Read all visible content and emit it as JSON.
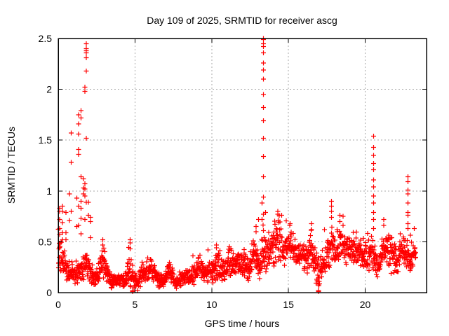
{
  "figure": {
    "title": "Day 109 of 2025, SRMTID for receiver ascg",
    "xlabel": "GPS time / hours",
    "ylabel": "SRMTID / TECUs"
  },
  "chart_data": {
    "type": "scatter",
    "title": "Day 109 of 2025, SRMTID for receiver ascg",
    "xlabel": "GPS time / hours",
    "ylabel": "SRMTID / TECUs",
    "series_name": "SRMTID",
    "xlim": [
      0,
      24
    ],
    "ylim": [
      0,
      2.5
    ],
    "xticks": [
      0,
      5,
      10,
      15,
      20
    ],
    "yticks": [
      0,
      0.5,
      1,
      1.5,
      2,
      2.5
    ],
    "grid": true,
    "legend_position": "none",
    "marker": "plus",
    "marker_color": "#ff0000",
    "grid_color": "#a8a8a8",
    "border_color": "#000000",
    "x_start": 0.0,
    "x_end": 23.3,
    "sample_step_hours": 0.013,
    "seed": 109,
    "band_keypoints": [
      [
        0.0,
        0.4,
        0.22
      ],
      [
        0.15,
        0.33,
        0.14
      ],
      [
        0.35,
        0.28,
        0.11
      ],
      [
        0.6,
        0.23,
        0.09
      ],
      [
        0.9,
        0.19,
        0.08
      ],
      [
        1.2,
        0.17,
        0.08
      ],
      [
        1.5,
        0.23,
        0.11
      ],
      [
        1.8,
        0.27,
        0.13
      ],
      [
        2.0,
        0.21,
        0.11
      ],
      [
        2.3,
        0.13,
        0.06
      ],
      [
        2.6,
        0.18,
        0.08
      ],
      [
        2.85,
        0.3,
        0.14
      ],
      [
        3.05,
        0.28,
        0.13
      ],
      [
        3.25,
        0.17,
        0.08
      ],
      [
        3.5,
        0.12,
        0.06
      ],
      [
        3.8,
        0.1,
        0.05
      ],
      [
        4.1,
        0.13,
        0.06
      ],
      [
        4.4,
        0.11,
        0.06
      ],
      [
        4.65,
        0.22,
        0.14
      ],
      [
        4.9,
        0.15,
        0.08
      ],
      [
        5.15,
        0.08,
        0.05
      ],
      [
        5.45,
        0.2,
        0.09
      ],
      [
        5.75,
        0.2,
        0.08
      ],
      [
        6.05,
        0.22,
        0.09
      ],
      [
        6.35,
        0.17,
        0.08
      ],
      [
        6.65,
        0.11,
        0.06
      ],
      [
        6.9,
        0.1,
        0.05
      ],
      [
        7.15,
        0.2,
        0.08
      ],
      [
        7.4,
        0.18,
        0.08
      ],
      [
        7.7,
        0.08,
        0.05
      ],
      [
        8.0,
        0.14,
        0.07
      ],
      [
        8.3,
        0.16,
        0.07
      ],
      [
        8.6,
        0.14,
        0.07
      ],
      [
        8.9,
        0.2,
        0.09
      ],
      [
        9.15,
        0.25,
        0.1
      ],
      [
        9.45,
        0.2,
        0.09
      ],
      [
        9.75,
        0.22,
        0.1
      ],
      [
        10.05,
        0.22,
        0.1
      ],
      [
        10.3,
        0.3,
        0.13
      ],
      [
        10.6,
        0.24,
        0.11
      ],
      [
        10.9,
        0.2,
        0.09
      ],
      [
        11.15,
        0.3,
        0.12
      ],
      [
        11.4,
        0.27,
        0.1
      ],
      [
        11.7,
        0.28,
        0.1
      ],
      [
        12.1,
        0.27,
        0.1
      ],
      [
        12.45,
        0.2,
        0.1
      ],
      [
        12.7,
        0.42,
        0.16
      ],
      [
        12.95,
        0.35,
        0.14
      ],
      [
        13.15,
        0.22,
        0.13
      ],
      [
        13.36,
        0.45,
        0.18
      ],
      [
        13.6,
        0.38,
        0.14
      ],
      [
        13.85,
        0.4,
        0.15
      ],
      [
        14.15,
        0.5,
        0.2
      ],
      [
        14.4,
        0.55,
        0.2
      ],
      [
        14.65,
        0.4,
        0.13
      ],
      [
        14.9,
        0.45,
        0.15
      ],
      [
        15.1,
        0.5,
        0.15
      ],
      [
        15.35,
        0.42,
        0.13
      ],
      [
        15.6,
        0.36,
        0.12
      ],
      [
        15.9,
        0.38,
        0.12
      ],
      [
        16.2,
        0.33,
        0.12
      ],
      [
        16.5,
        0.45,
        0.15
      ],
      [
        16.75,
        0.28,
        0.14
      ],
      [
        17.0,
        0.18,
        0.11
      ],
      [
        17.25,
        0.26,
        0.11
      ],
      [
        17.5,
        0.38,
        0.14
      ],
      [
        17.8,
        0.48,
        0.18
      ],
      [
        18.1,
        0.35,
        0.13
      ],
      [
        18.35,
        0.5,
        0.16
      ],
      [
        18.6,
        0.46,
        0.15
      ],
      [
        18.85,
        0.44,
        0.13
      ],
      [
        19.1,
        0.42,
        0.12
      ],
      [
        19.35,
        0.45,
        0.13
      ],
      [
        19.6,
        0.4,
        0.12
      ],
      [
        19.9,
        0.34,
        0.12
      ],
      [
        20.15,
        0.35,
        0.12
      ],
      [
        20.45,
        0.4,
        0.15
      ],
      [
        20.7,
        0.29,
        0.12
      ],
      [
        20.95,
        0.28,
        0.13
      ],
      [
        21.2,
        0.46,
        0.17
      ],
      [
        21.45,
        0.42,
        0.15
      ],
      [
        21.7,
        0.37,
        0.14
      ],
      [
        21.95,
        0.31,
        0.12
      ],
      [
        22.2,
        0.34,
        0.11
      ],
      [
        22.45,
        0.42,
        0.12
      ],
      [
        22.7,
        0.4,
        0.14
      ],
      [
        22.95,
        0.32,
        0.13
      ],
      [
        23.15,
        0.38,
        0.1
      ],
      [
        23.3,
        0.4,
        0.08
      ]
    ],
    "spike_columns": [
      {
        "x": 0.1,
        "ys": [
          0.83,
          0.8,
          0.72,
          0.63,
          0.57
        ]
      },
      {
        "x": 0.27,
        "ys": [
          0.85,
          0.8,
          0.69,
          0.59,
          0.52
        ]
      },
      {
        "x": 0.5,
        "ys": [
          0.79,
          0.59,
          0.52
        ]
      },
      {
        "x": 0.73,
        "ys": [
          0.97,
          0.71
        ]
      },
      {
        "x": 0.85,
        "ys": [
          1.57,
          1.28,
          0.8
        ]
      },
      {
        "x": 1.2,
        "ys": [
          0.93,
          0.65
        ]
      },
      {
        "x": 1.33,
        "ys": [
          1.75,
          1.66,
          1.56,
          1.41,
          1.36,
          0.85,
          0.66
        ]
      },
      {
        "x": 1.48,
        "ys": [
          1.79,
          1.72,
          1.14,
          0.9,
          0.83,
          0.73,
          0.58
        ]
      },
      {
        "x": 1.64,
        "ys": [
          1.12,
          1.03,
          0.97
        ]
      },
      {
        "x": 1.73,
        "ys": [
          2.02,
          1.98,
          1.07,
          1.02,
          0.95,
          0.72
        ]
      },
      {
        "x": 1.83,
        "ys": [
          2.45,
          2.4,
          2.38,
          2.36,
          2.31,
          2.18,
          1.52,
          0.89
        ]
      },
      {
        "x": 1.96,
        "ys": [
          0.89,
          0.76
        ]
      },
      {
        "x": 2.1,
        "ys": [
          0.74,
          0.7,
          0.54
        ]
      },
      {
        "x": 2.9,
        "ys": [
          0.52,
          0.47
        ]
      },
      {
        "x": 4.68,
        "ys": [
          0.52,
          0.49,
          0.43
        ]
      },
      {
        "x": 4.85,
        "ys": [
          0.01,
          0.02
        ]
      },
      {
        "x": 9.75,
        "ys": [
          0.42
        ]
      },
      {
        "x": 10.3,
        "ys": [
          0.47,
          0.44
        ]
      },
      {
        "x": 11.15,
        "ys": [
          0.45
        ]
      },
      {
        "x": 12.9,
        "ys": [
          0.65,
          0.6
        ]
      },
      {
        "x": 13.05,
        "ys": [
          0.72
        ]
      },
      {
        "x": 13.28,
        "ys": [
          0.88,
          0.72
        ]
      },
      {
        "x": 13.36,
        "ys": [
          2.5,
          2.49,
          2.45,
          2.42,
          2.36,
          2.26,
          2.19,
          2.1,
          1.95,
          1.82,
          1.69,
          1.52,
          1.34,
          1.14,
          0.94,
          0.77,
          0.61
        ]
      },
      {
        "x": 13.5,
        "ys": [
          0.79
        ]
      },
      {
        "x": 14.3,
        "ys": [
          0.8,
          0.77
        ]
      },
      {
        "x": 15.1,
        "ys": [
          0.68
        ]
      },
      {
        "x": 16.5,
        "ys": [
          0.68,
          0.62
        ]
      },
      {
        "x": 16.95,
        "ys": [
          0.01,
          0.02
        ]
      },
      {
        "x": 17.35,
        "ys": [
          0.62
        ]
      },
      {
        "x": 17.8,
        "ys": [
          0.9,
          0.85,
          0.8,
          0.74
        ]
      },
      {
        "x": 18.35,
        "ys": [
          0.76,
          0.7
        ]
      },
      {
        "x": 18.55,
        "ys": [
          0.75,
          0.66
        ]
      },
      {
        "x": 20.55,
        "ys": [
          1.54,
          1.43,
          1.35,
          1.27,
          1.21,
          1.11,
          1.04,
          0.95,
          0.88,
          0.79,
          0.72,
          0.63
        ]
      },
      {
        "x": 21.2,
        "ys": [
          0.72,
          0.66
        ]
      },
      {
        "x": 22.78,
        "ys": [
          1.14,
          1.09,
          1.01,
          0.97,
          0.88,
          0.79,
          0.76,
          0.68,
          0.63
        ]
      },
      {
        "x": 23.2,
        "ys": [
          0.63
        ]
      }
    ]
  }
}
